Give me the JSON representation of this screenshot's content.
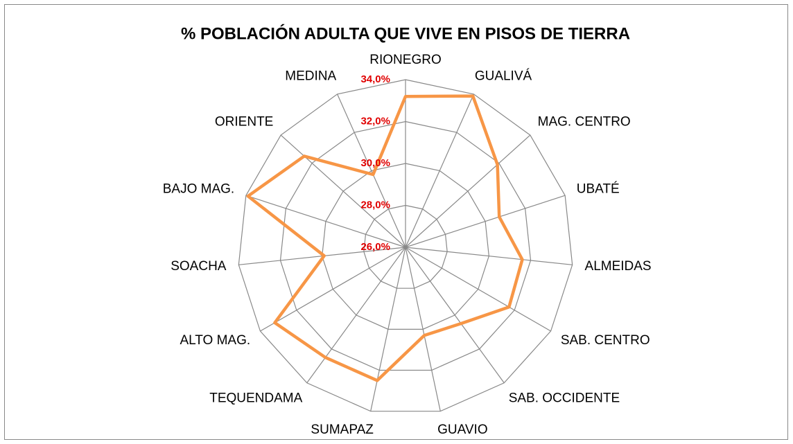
{
  "chart_data": {
    "type": "radar",
    "title": "% POBLACIÓN ADULTA QUE VIVE EN PISOS DE TIERRA",
    "categories": [
      "RIONEGRO",
      "GUALIVÁ",
      "MAG. CENTRO",
      "UBATÉ",
      "ALMEIDAS",
      "SAB. CENTRO",
      "SAB. OCCIDENTE",
      "GUAVIO",
      "SUMAPAZ",
      "TEQUENDAMA",
      "ALTO MAG.",
      "SOACHA",
      "BAJO MAG.",
      "ORIENTE",
      "MEDINA"
    ],
    "values": [
      33.2,
      33.9,
      31.9,
      30.7,
      31.6,
      31.7,
      30.5,
      30.3,
      32.5,
      32.5,
      33.2,
      29.9,
      33.9,
      32.5,
      29.8
    ],
    "color": "#f79646",
    "ylim": [
      26,
      34
    ],
    "yticks": [
      {
        "value": 26,
        "label": "26,0%"
      },
      {
        "value": 28,
        "label": "28,0%"
      },
      {
        "value": 30,
        "label": "30,0%"
      },
      {
        "value": 32,
        "label": "32,0%"
      },
      {
        "value": 34,
        "label": "34,0%"
      }
    ]
  }
}
